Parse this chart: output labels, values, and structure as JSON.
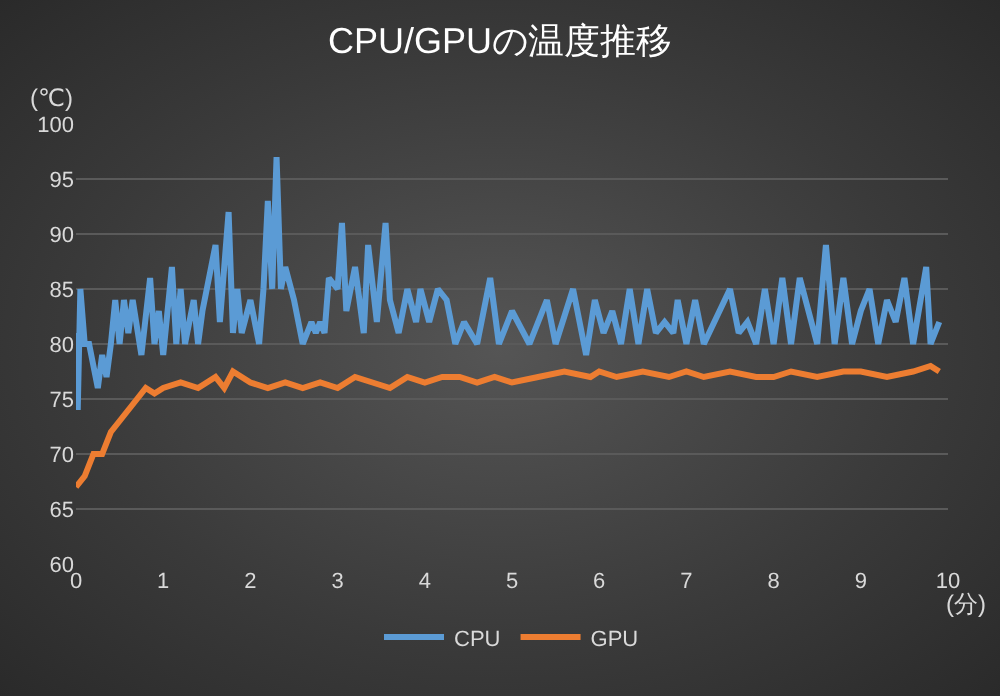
{
  "chart_data": {
    "type": "line",
    "title": "CPU/GPUの温度推移",
    "xlabel": "(分)",
    "ylabel": "(℃)",
    "xlim": [
      0,
      10
    ],
    "xticks": [
      0,
      1,
      2,
      3,
      4,
      5,
      6,
      7,
      8,
      9,
      10
    ],
    "ylim": [
      60,
      100
    ],
    "yticks": [
      60,
      65,
      70,
      75,
      80,
      85,
      90,
      95,
      100
    ],
    "grid": "y",
    "legend": "bottom",
    "marker": "none",
    "line_style": "solid",
    "series": [
      {
        "name": "CPU",
        "color": "#5b9bd5",
        "x": [
          0,
          0.02,
          0.05,
          0.1,
          0.15,
          0.25,
          0.3,
          0.35,
          0.4,
          0.45,
          0.5,
          0.55,
          0.6,
          0.65,
          0.75,
          0.85,
          0.9,
          0.95,
          1.0,
          1.1,
          1.15,
          1.2,
          1.25,
          1.3,
          1.35,
          1.4,
          1.45,
          1.55,
          1.6,
          1.65,
          1.75,
          1.8,
          1.85,
          1.9,
          2.0,
          2.1,
          2.15,
          2.2,
          2.25,
          2.3,
          2.35,
          2.4,
          2.5,
          2.6,
          2.7,
          2.75,
          2.8,
          2.85,
          2.9,
          3.0,
          3.05,
          3.1,
          3.2,
          3.3,
          3.35,
          3.45,
          3.55,
          3.6,
          3.7,
          3.8,
          3.9,
          3.95,
          4.05,
          4.15,
          4.25,
          4.35,
          4.45,
          4.6,
          4.7,
          4.75,
          4.85,
          5.0,
          5.2,
          5.4,
          5.5,
          5.7,
          5.85,
          5.95,
          6.05,
          6.15,
          6.25,
          6.35,
          6.45,
          6.55,
          6.65,
          6.75,
          6.85,
          6.9,
          7.0,
          7.1,
          7.2,
          7.5,
          7.6,
          7.7,
          7.8,
          7.9,
          8.0,
          8.1,
          8.2,
          8.3,
          8.5,
          8.6,
          8.7,
          8.8,
          8.9,
          9.0,
          9.1,
          9.2,
          9.3,
          9.4,
          9.5,
          9.6,
          9.75,
          9.8,
          9.9
        ],
        "values": [
          81,
          74,
          85,
          80,
          80,
          76,
          79,
          77,
          80,
          84,
          80,
          84,
          81,
          84,
          79,
          86,
          80,
          83,
          79,
          87,
          80,
          85,
          80,
          82,
          84,
          80,
          83,
          87,
          89,
          82,
          92,
          81,
          85,
          81,
          84,
          80,
          85,
          93,
          85,
          97,
          85,
          87,
          84,
          80,
          82,
          81,
          82,
          81,
          86,
          85,
          91,
          83,
          87,
          81,
          89,
          82,
          91,
          84,
          81,
          85,
          82,
          85,
          82,
          85,
          84,
          80,
          82,
          80,
          84,
          86,
          80,
          83,
          80,
          84,
          80,
          85,
          79,
          84,
          81,
          83,
          80,
          85,
          80,
          85,
          81,
          82,
          81,
          84,
          80,
          84,
          80,
          85,
          81,
          82,
          80,
          85,
          80,
          86,
          80,
          86,
          80,
          89,
          80,
          86,
          80,
          83,
          85,
          80,
          84,
          82,
          86,
          80,
          87,
          80,
          82
        ]
      },
      {
        "name": "GPU",
        "color": "#ed7d31",
        "x": [
          0,
          0.1,
          0.2,
          0.3,
          0.4,
          0.5,
          0.6,
          0.7,
          0.8,
          0.9,
          1.0,
          1.2,
          1.4,
          1.6,
          1.7,
          1.8,
          2.0,
          2.2,
          2.4,
          2.6,
          2.8,
          3.0,
          3.2,
          3.4,
          3.6,
          3.8,
          4.0,
          4.2,
          4.4,
          4.6,
          4.8,
          5.0,
          5.3,
          5.6,
          5.9,
          6.0,
          6.2,
          6.5,
          6.8,
          7.0,
          7.2,
          7.5,
          7.8,
          8.0,
          8.2,
          8.5,
          8.8,
          9.0,
          9.3,
          9.6,
          9.8,
          9.9
        ],
        "values": [
          67,
          68,
          70,
          70,
          72,
          73,
          74,
          75,
          76,
          75.5,
          76,
          76.5,
          76,
          77,
          76,
          77.5,
          76.5,
          76,
          76.5,
          76,
          76.5,
          76,
          77,
          76.5,
          76,
          77,
          76.5,
          77,
          77,
          76.5,
          77,
          76.5,
          77,
          77.5,
          77,
          77.5,
          77,
          77.5,
          77,
          77.5,
          77,
          77.5,
          77,
          77,
          77.5,
          77,
          77.5,
          77.5,
          77,
          77.5,
          78,
          77.5
        ]
      }
    ]
  }
}
